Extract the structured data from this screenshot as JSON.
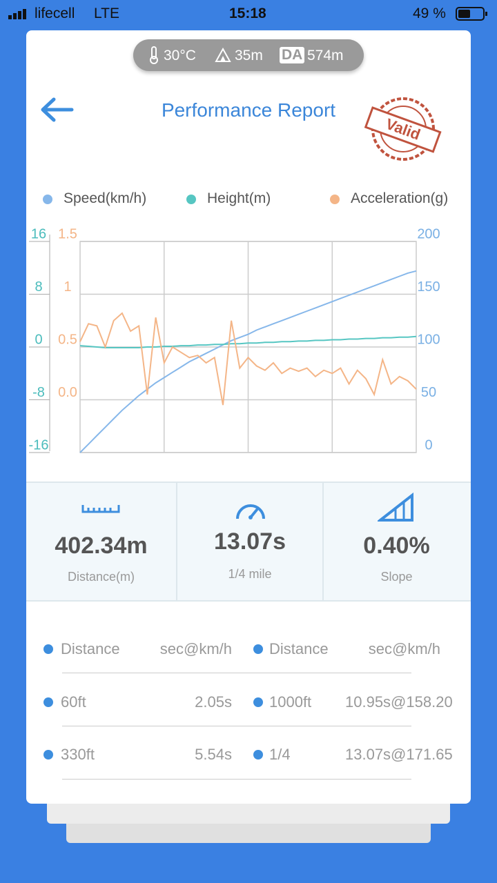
{
  "status_bar": {
    "carrier": "lifecell",
    "network": "LTE",
    "time": "15:18",
    "battery": "49 %"
  },
  "conditions": {
    "temperature": "30°C",
    "altitude": "35m",
    "da_label": "DA",
    "density_altitude": "574m"
  },
  "header": {
    "title": "Performance Report",
    "stamp": "Valid"
  },
  "chart_data": {
    "type": "line",
    "series": [
      {
        "name": "Speed(km/h)",
        "color": "#86b7ea",
        "axis": "y",
        "values": [
          0,
          8,
          16,
          24,
          32,
          40,
          47,
          54,
          60,
          66,
          71,
          76,
          81,
          86,
          90,
          94,
          98,
          102,
          106,
          109,
          112,
          116,
          119,
          122,
          125,
          128,
          131,
          134,
          137,
          140,
          143,
          146,
          149,
          152,
          155,
          158,
          161,
          164,
          167,
          170,
          172
        ]
      },
      {
        "name": "Height(m)",
        "color": "#56c6c2",
        "axis": "y2",
        "values": [
          0.2,
          0.1,
          0,
          -0.1,
          -0.1,
          -0.1,
          -0.1,
          -0.1,
          0,
          0,
          0.1,
          0.1,
          0.2,
          0.2,
          0.3,
          0.3,
          0.4,
          0.4,
          0.5,
          0.5,
          0.6,
          0.6,
          0.7,
          0.7,
          0.8,
          0.8,
          0.9,
          0.9,
          1.0,
          1.0,
          1.1,
          1.1,
          1.2,
          1.2,
          1.3,
          1.3,
          1.4,
          1.4,
          1.5,
          1.5,
          1.6
        ]
      },
      {
        "name": "Acceleration(g)",
        "color": "#f4b587",
        "axis": "y3",
        "values": [
          0.55,
          0.72,
          0.7,
          0.5,
          0.75,
          0.82,
          0.65,
          0.7,
          0.05,
          0.78,
          0.35,
          0.5,
          0.45,
          0.4,
          0.42,
          0.35,
          0.4,
          -0.05,
          0.75,
          0.3,
          0.4,
          0.32,
          0.28,
          0.35,
          0.25,
          0.3,
          0.27,
          0.3,
          0.22,
          0.28,
          0.25,
          0.3,
          0.15,
          0.28,
          0.2,
          0.05,
          0.38,
          0.15,
          0.22,
          0.18,
          0.1
        ]
      }
    ],
    "ylim": [
      0,
      200
    ],
    "yticks": [
      0,
      50,
      100,
      150,
      200
    ],
    "y2lim": [
      -16,
      16
    ],
    "y2ticks": [
      -16,
      -8,
      0,
      8,
      16
    ],
    "y3lim": [
      -0.5,
      1.5
    ],
    "y3ticks": [
      {
        "value": 0,
        "label": "0.0"
      },
      0.5,
      1,
      1.5
    ],
    "grid": true
  },
  "stats": [
    {
      "value": "402.34m",
      "label": "Distance(m)"
    },
    {
      "value": "13.07s",
      "label": "1/4 mile"
    },
    {
      "value": "0.40%",
      "label": "Slope"
    }
  ],
  "table": {
    "columns": [
      "Distance",
      "sec@km/h",
      "Distance",
      "sec@km/h"
    ],
    "rows": [
      [
        "60ft",
        "2.05s",
        "1000ft",
        "10.95s@158.20"
      ],
      [
        "330ft",
        "5.54s",
        "1/4",
        "13.07s@171.65"
      ]
    ]
  }
}
